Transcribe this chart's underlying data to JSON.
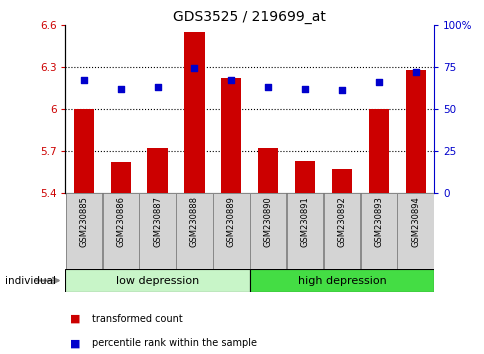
{
  "title": "GDS3525 / 219699_at",
  "samples": [
    "GSM230885",
    "GSM230886",
    "GSM230887",
    "GSM230888",
    "GSM230889",
    "GSM230890",
    "GSM230891",
    "GSM230892",
    "GSM230893",
    "GSM230894"
  ],
  "red_values": [
    6.0,
    5.62,
    5.72,
    6.55,
    6.22,
    5.72,
    5.63,
    5.57,
    6.0,
    6.28
  ],
  "blue_values": [
    67,
    62,
    63,
    74,
    67,
    63,
    62,
    61,
    66,
    72
  ],
  "ylim_left": [
    5.4,
    6.6
  ],
  "ylim_right": [
    0,
    100
  ],
  "yticks_left": [
    5.4,
    5.7,
    6.0,
    6.3,
    6.6
  ],
  "yticks_right": [
    0,
    25,
    50,
    75,
    100
  ],
  "ytick_labels_left": [
    "5.4",
    "5.7",
    "6",
    "6.3",
    "6.6"
  ],
  "ytick_labels_right": [
    "0",
    "25",
    "50",
    "75",
    "100%"
  ],
  "hlines": [
    5.7,
    6.0,
    6.3
  ],
  "group_labels": [
    "low depression",
    "high depression"
  ],
  "low_count": 5,
  "high_count": 5,
  "bar_color": "#cc0000",
  "dot_color": "#0000cc",
  "bar_width": 0.55,
  "xlabel_bottom": "individual",
  "legend_items": [
    "transformed count",
    "percentile rank within the sample"
  ],
  "legend_colors": [
    "#cc0000",
    "#0000cc"
  ],
  "bg_color": "#ffffff",
  "tick_color_left": "#cc0000",
  "tick_color_right": "#0000cc",
  "low_color": "#c8f5c8",
  "high_color": "#44dd44",
  "sample_box_color": "#d4d4d4",
  "sample_box_edge": "#888888"
}
